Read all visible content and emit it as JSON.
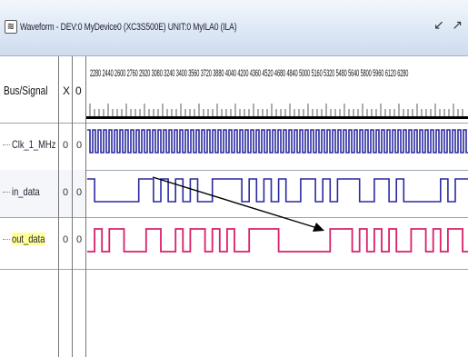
{
  "window": {
    "title": "Waveform - DEV:0 MyDevice0 (XC3S500E) UNIT:0 MyILA0 (ILA)",
    "icon": "waveform-app-icon",
    "controls": [
      "↙",
      "↗"
    ]
  },
  "header": {
    "bus_signal_label": "Bus/Signal",
    "x_label": "X",
    "o_label": "0",
    "ruler_ticks": "2280 2440 2600 2760 2920 3080 3240 3400 3560 3720 3880 4040 4200 4360 4520 4680 4840 5000 5160 5320 5480 5640 5800 5960 6120 6280"
  },
  "signals": [
    {
      "name": "Clk_1_MHz",
      "x": "0",
      "o": "0",
      "color": "#2a2aa0"
    },
    {
      "name": "in_data",
      "x": "0",
      "o": "0",
      "color": "#2a2aa0"
    },
    {
      "name": "out_data",
      "x": "0",
      "o": "0",
      "color": "#d8206a"
    }
  ],
  "colors": {
    "clock_wave": "#2a2aa0",
    "in_wave": "#2a2aa0",
    "out_wave": "#d8206a",
    "cursor_bar": "#000000",
    "annotation_arrow": "#000000"
  }
}
